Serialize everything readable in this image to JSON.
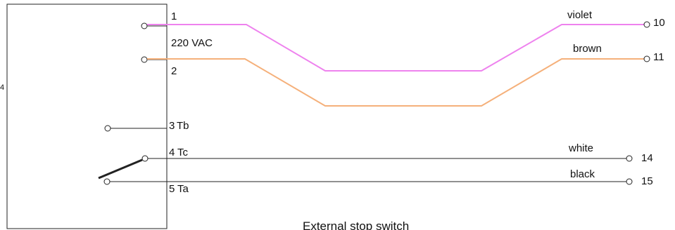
{
  "colors": {
    "violet": "#ee82ee",
    "brown": "#f5b07a",
    "black": "#222222"
  },
  "box": {
    "edge_mark": "4"
  },
  "pins": [
    {
      "num": "1",
      "label": ""
    },
    {
      "num": "2",
      "label": ""
    },
    {
      "num": "3",
      "label": "Tb"
    },
    {
      "num": "4",
      "label": "Tc"
    },
    {
      "num": "5",
      "label": "Ta"
    }
  ],
  "voltage_label": "220  VAC",
  "wires": {
    "violet": {
      "name": "violet",
      "terminal": "10"
    },
    "brown": {
      "name": "brown",
      "terminal": "11"
    },
    "white": {
      "name": "white",
      "terminal": "14"
    },
    "black": {
      "name": "black",
      "terminal": "15"
    }
  },
  "caption": "External stop switch"
}
